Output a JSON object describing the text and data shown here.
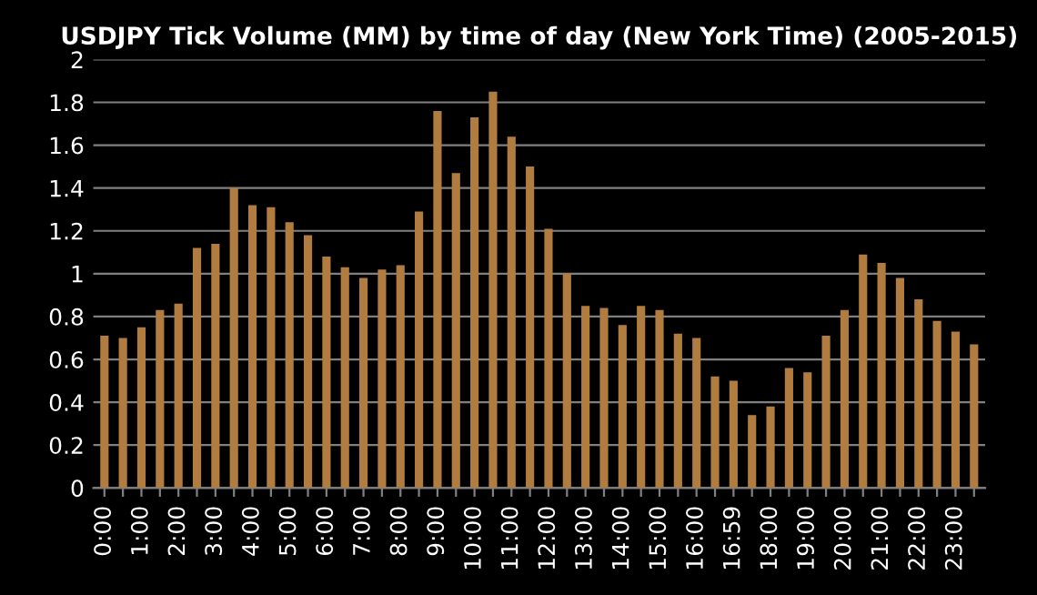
{
  "chart_data": {
    "type": "bar",
    "title": "USDJPY Tick Volume (MM) by time of day (New York Time) (2005-2015)",
    "categories": [
      "0:00",
      null,
      "1:00",
      null,
      "2:00",
      null,
      "3:00",
      null,
      "4:00",
      null,
      "5:00",
      null,
      "6:00",
      null,
      "7:00",
      null,
      "8:00",
      null,
      "9:00",
      null,
      "10:00",
      null,
      "11:00",
      null,
      "12:00",
      null,
      "13:00",
      null,
      "14:00",
      null,
      "15:00",
      null,
      "16:00",
      null,
      "16:59",
      null,
      "18:00",
      null,
      "19:00",
      null,
      "20:00",
      null,
      "21:00",
      null,
      "22:00",
      null,
      "23:00",
      null
    ],
    "values": [
      0.71,
      0.7,
      0.75,
      0.83,
      0.86,
      1.12,
      1.14,
      1.4,
      1.32,
      1.31,
      1.24,
      1.18,
      1.08,
      1.03,
      0.98,
      1.02,
      1.04,
      1.29,
      1.76,
      1.47,
      1.73,
      1.85,
      1.64,
      1.5,
      1.21,
      1.0,
      0.85,
      0.84,
      0.76,
      0.85,
      0.83,
      0.72,
      0.7,
      0.52,
      0.5,
      0.34,
      0.38,
      0.56,
      0.54,
      0.71,
      0.83,
      1.09,
      1.05,
      0.98,
      0.88,
      0.78,
      0.73,
      0.67
    ],
    "color": "#b07c40",
    "ylim": [
      0,
      2
    ],
    "yticks": [
      0,
      0.2,
      0.4,
      0.6,
      0.8,
      1,
      1.2,
      1.4,
      1.6,
      1.8,
      2
    ],
    "grid": "y"
  }
}
